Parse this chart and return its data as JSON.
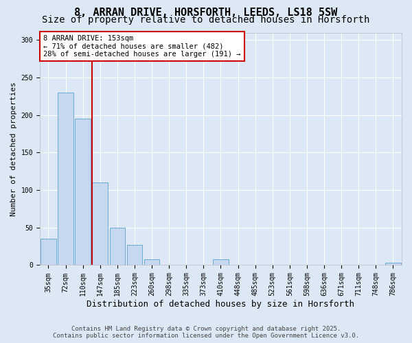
{
  "title": "8, ARRAN DRIVE, HORSFORTH, LEEDS, LS18 5SW",
  "subtitle": "Size of property relative to detached houses in Horsforth",
  "xlabel": "Distribution of detached houses by size in Horsforth",
  "ylabel": "Number of detached properties",
  "categories": [
    "35sqm",
    "72sqm",
    "110sqm",
    "147sqm",
    "185sqm",
    "223sqm",
    "260sqm",
    "298sqm",
    "335sqm",
    "373sqm",
    "410sqm",
    "448sqm",
    "485sqm",
    "523sqm",
    "561sqm",
    "598sqm",
    "636sqm",
    "671sqm",
    "711sqm",
    "748sqm",
    "786sqm"
  ],
  "values": [
    35,
    230,
    195,
    110,
    50,
    27,
    8,
    0,
    0,
    0,
    8,
    0,
    0,
    0,
    0,
    0,
    0,
    0,
    0,
    0,
    3
  ],
  "bar_color": "#c5d8ef",
  "bar_edge_color": "#6aaad4",
  "vline_x_index": 3,
  "vline_color": "#cc0000",
  "annotation_text": "8 ARRAN DRIVE: 153sqm\n← 71% of detached houses are smaller (482)\n28% of semi-detached houses are larger (191) →",
  "annotation_box_color": "#ffffff",
  "annotation_box_edge": "#cc0000",
  "ylim": [
    0,
    310
  ],
  "yticks": [
    0,
    50,
    100,
    150,
    200,
    250,
    300
  ],
  "background_color": "#dce8f5",
  "plot_bg_color": "#dce8f5",
  "footer_line1": "Contains HM Land Registry data © Crown copyright and database right 2025.",
  "footer_line2": "Contains public sector information licensed under the Open Government Licence v3.0.",
  "title_fontsize": 11,
  "subtitle_fontsize": 10,
  "xlabel_fontsize": 9,
  "ylabel_fontsize": 8,
  "tick_fontsize": 7,
  "annotation_fontsize": 7.5,
  "footer_fontsize": 6.5
}
